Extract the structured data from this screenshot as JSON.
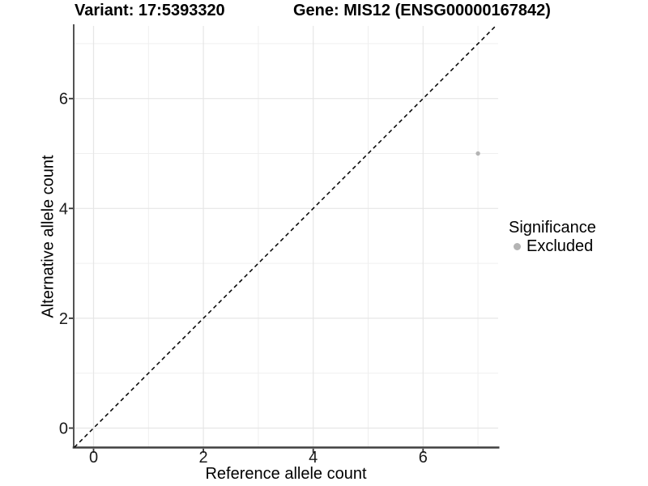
{
  "chart_data": {
    "type": "scatter",
    "title_left": "Variant: 17:5393320",
    "title_right": "Gene: MIS12 (ENSG00000167842)",
    "xlabel": "Reference allele count",
    "ylabel": "Alternative allele count",
    "xlim": [
      -0.36,
      7.37
    ],
    "ylim": [
      -0.35,
      7.32
    ],
    "xticks": [
      0,
      2,
      4,
      6
    ],
    "yticks": [
      0,
      2,
      4,
      6
    ],
    "xminor": [
      1,
      3,
      5,
      7
    ],
    "yminor": [
      1,
      3,
      5,
      7
    ],
    "grid": "major and minor, light gray on white",
    "identity_line": {
      "equation": "y = x",
      "style": "dashed",
      "color": "#000000"
    },
    "series": [
      {
        "name": "Excluded",
        "color": "#b4b4b4",
        "points": [
          {
            "x": 7,
            "y": 5
          }
        ]
      }
    ],
    "legend": {
      "title": "Significance",
      "position": "right",
      "entries": [
        {
          "label": "Excluded",
          "color": "#b4b4b4"
        }
      ]
    },
    "colors": {
      "background": "#ffffff",
      "grid_major": "#e6e6e6",
      "grid_minor": "#efefef",
      "axis_line": "#404040",
      "tick_mark": "#333333",
      "tick_label": "#1a1a1a",
      "text": "#000000"
    }
  }
}
